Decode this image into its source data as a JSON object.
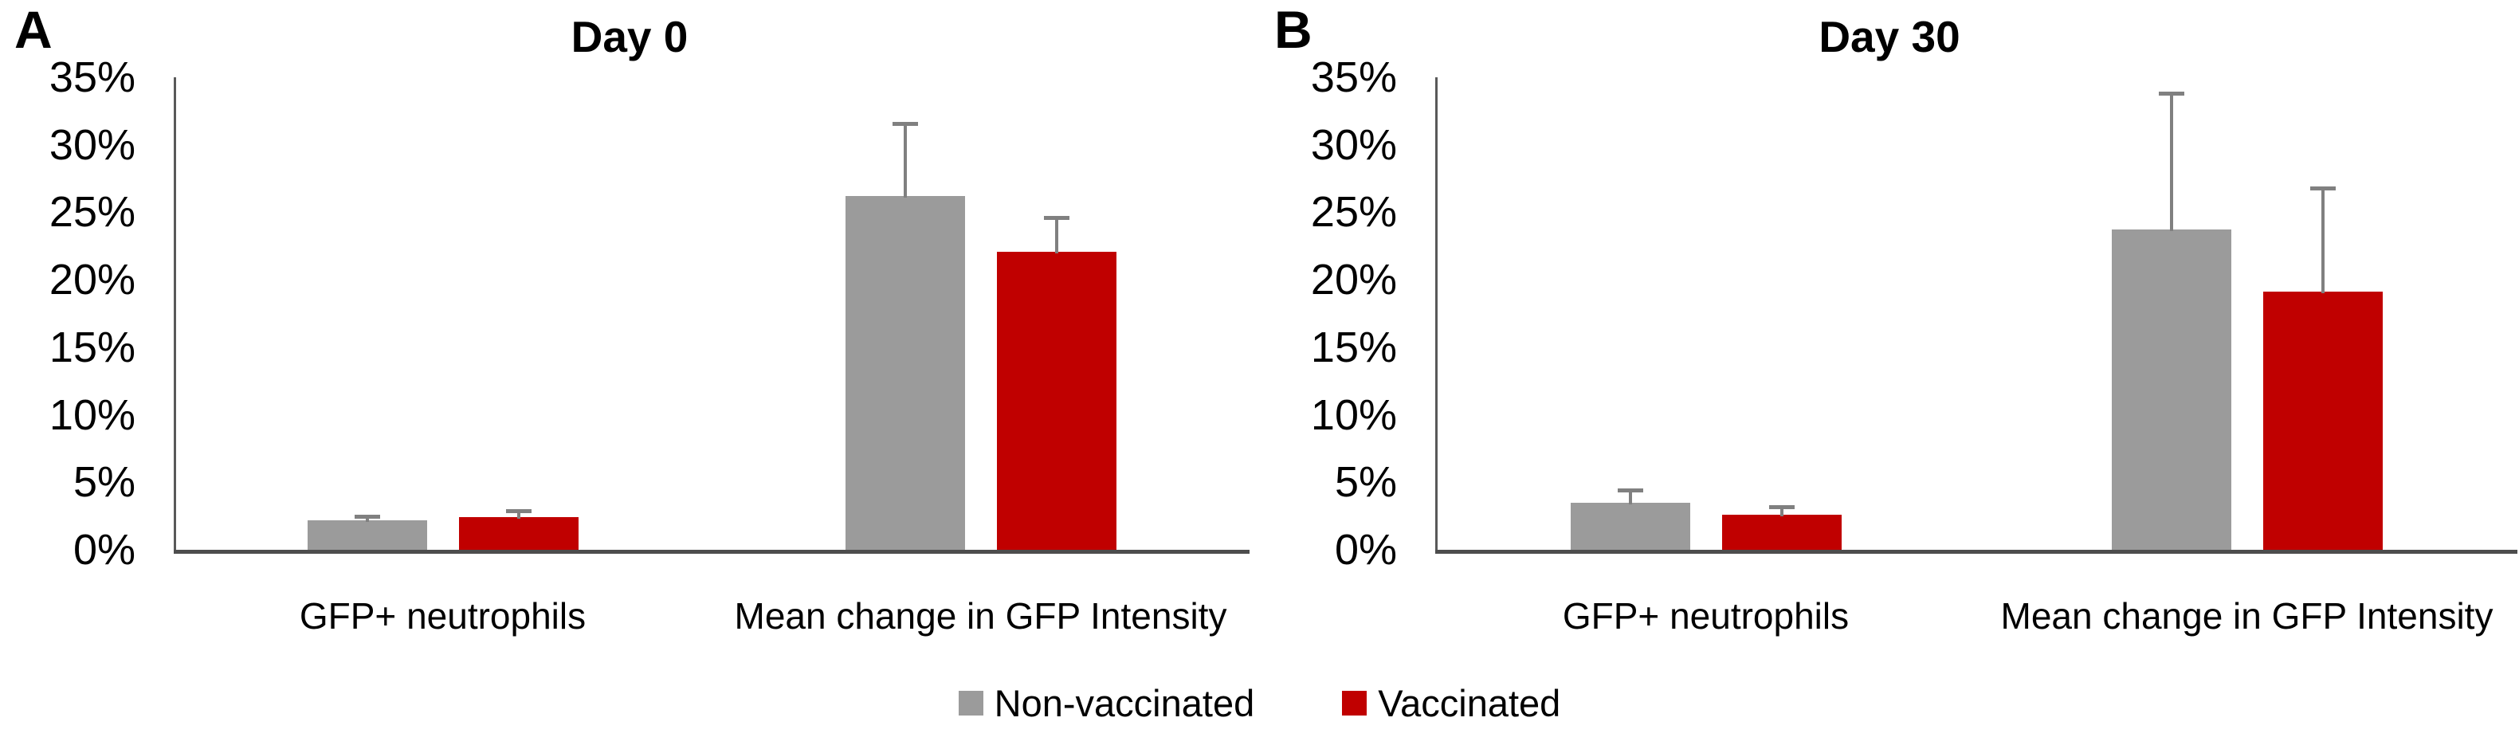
{
  "figure": {
    "background": "#ffffff"
  },
  "panels": [
    {
      "label": "A"
    },
    {
      "label": "B"
    }
  ],
  "legend": {
    "items": [
      {
        "label": "Non-vaccinated",
        "color": "#9b9b9b"
      },
      {
        "label": "Vaccinated",
        "color": "#c00000"
      }
    ]
  },
  "colors": {
    "non_vaccinated": "#9b9b9b",
    "vaccinated": "#c00000",
    "axis": "#595959",
    "baseline": "#4d4d4d",
    "error_bar": "#808080"
  },
  "chart_data": [
    {
      "type": "bar",
      "title": "Day 0",
      "categories": [
        "GFP+ neutrophils",
        "Mean change in GFP Intensity"
      ],
      "series": [
        {
          "name": "Non-vaccinated",
          "color": "#9b9b9b",
          "values": [
            2.2,
            26.2
          ],
          "errors_plus": [
            0.3,
            5.4
          ]
        },
        {
          "name": "Vaccinated",
          "color": "#c00000",
          "values": [
            2.4,
            22.1
          ],
          "errors_plus": [
            0.5,
            2.5
          ]
        }
      ],
      "xlabel": "",
      "ylabel": "",
      "ylim": [
        0,
        35
      ],
      "ytick_step": 5,
      "yticks": [
        "0%",
        "5%",
        "10%",
        "15%",
        "20%",
        "25%",
        "30%",
        "35%"
      ],
      "grid": false,
      "legend_position": "bottom-center-shared",
      "error_bars": "upper-only"
    },
    {
      "type": "bar",
      "title": "Day 30",
      "categories": [
        "GFP+ neutrophils",
        "Mean change in GFP Intensity"
      ],
      "series": [
        {
          "name": "Non-vaccinated",
          "color": "#9b9b9b",
          "values": [
            3.5,
            23.7
          ],
          "errors_plus": [
            0.9,
            10.1
          ]
        },
        {
          "name": "Vaccinated",
          "color": "#c00000",
          "values": [
            2.6,
            19.1
          ],
          "errors_plus": [
            0.6,
            7.7
          ]
        }
      ],
      "xlabel": "",
      "ylabel": "",
      "ylim": [
        0,
        35
      ],
      "ytick_step": 5,
      "yticks": [
        "0%",
        "5%",
        "10%",
        "15%",
        "20%",
        "25%",
        "30%",
        "35%"
      ],
      "grid": false,
      "legend_position": "bottom-center-shared",
      "error_bars": "upper-only"
    }
  ]
}
